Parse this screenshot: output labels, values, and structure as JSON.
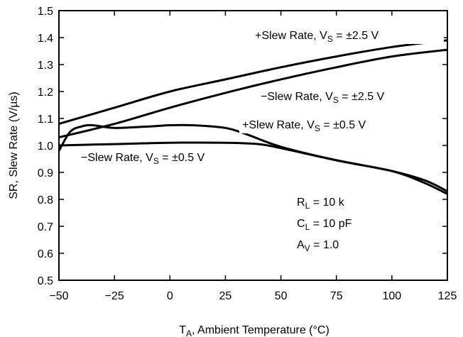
{
  "chart_data": {
    "type": "line",
    "xlabel": {
      "main": "T",
      "sub": "A",
      "rest": ", Ambient Temperature (°C)"
    },
    "ylabel": "SR, Slew Rate (V/µs)",
    "xlim": [
      -50,
      125
    ],
    "ylim": [
      0.5,
      1.5
    ],
    "x_ticks": [
      "−50",
      "−25",
      "0",
      "25",
      "50",
      "75",
      "100",
      "125"
    ],
    "y_ticks": [
      "0.5",
      "0.6",
      "0.7",
      "0.8",
      "0.9",
      "1.0",
      "1.1",
      "1.2",
      "1.3",
      "1.4",
      "1.5"
    ],
    "grid": false,
    "series": [
      {
        "name": "+Slew Rate, VS = ±2.5 V",
        "label": {
          "pre": "+Slew Rate, V",
          "sub": "S",
          "post": " = ±2.5 V"
        },
        "x": [
          -50,
          -25,
          0,
          25,
          50,
          75,
          100,
          125
        ],
        "y": [
          1.08,
          1.14,
          1.2,
          1.245,
          1.29,
          1.33,
          1.365,
          1.39
        ]
      },
      {
        "name": "−Slew Rate, VS = ±2.5 V",
        "label": {
          "pre": "−Slew Rate, V",
          "sub": "S",
          "post": " = ±2.5 V"
        },
        "x": [
          -50,
          -25,
          0,
          25,
          50,
          75,
          100,
          125
        ],
        "y": [
          1.03,
          1.08,
          1.14,
          1.195,
          1.245,
          1.29,
          1.33,
          1.355
        ]
      },
      {
        "name": "+Slew Rate, VS = ±0.5 V",
        "label": {
          "pre": "+Slew Rate, V",
          "sub": "S",
          "post": " = ±0.5 V"
        },
        "x": [
          -50,
          -45,
          -40,
          -35,
          -25,
          -10,
          0,
          10,
          25,
          35,
          50,
          75,
          100,
          115,
          125
        ],
        "y": [
          0.98,
          1.05,
          1.07,
          1.075,
          1.065,
          1.07,
          1.075,
          1.075,
          1.065,
          1.04,
          0.995,
          0.945,
          0.905,
          0.86,
          0.82
        ]
      },
      {
        "name": "−Slew Rate, VS = ±0.5 V",
        "label": {
          "pre": "−Slew Rate, V",
          "sub": "S",
          "post": " = ±0.5 V"
        },
        "x": [
          -50,
          -25,
          0,
          25,
          40,
          50,
          75,
          100,
          115,
          125
        ],
        "y": [
          1.0,
          1.005,
          1.01,
          1.01,
          1.005,
          0.99,
          0.945,
          0.905,
          0.87,
          0.83
        ]
      }
    ],
    "annotation": [
      {
        "pre": "R",
        "sub": "L",
        "post": " = 10 k"
      },
      {
        "pre": "C",
        "sub": "L",
        "post": " = 10 pF"
      },
      {
        "pre": "A",
        "sub": "V",
        "post": " = 1.0"
      }
    ]
  }
}
